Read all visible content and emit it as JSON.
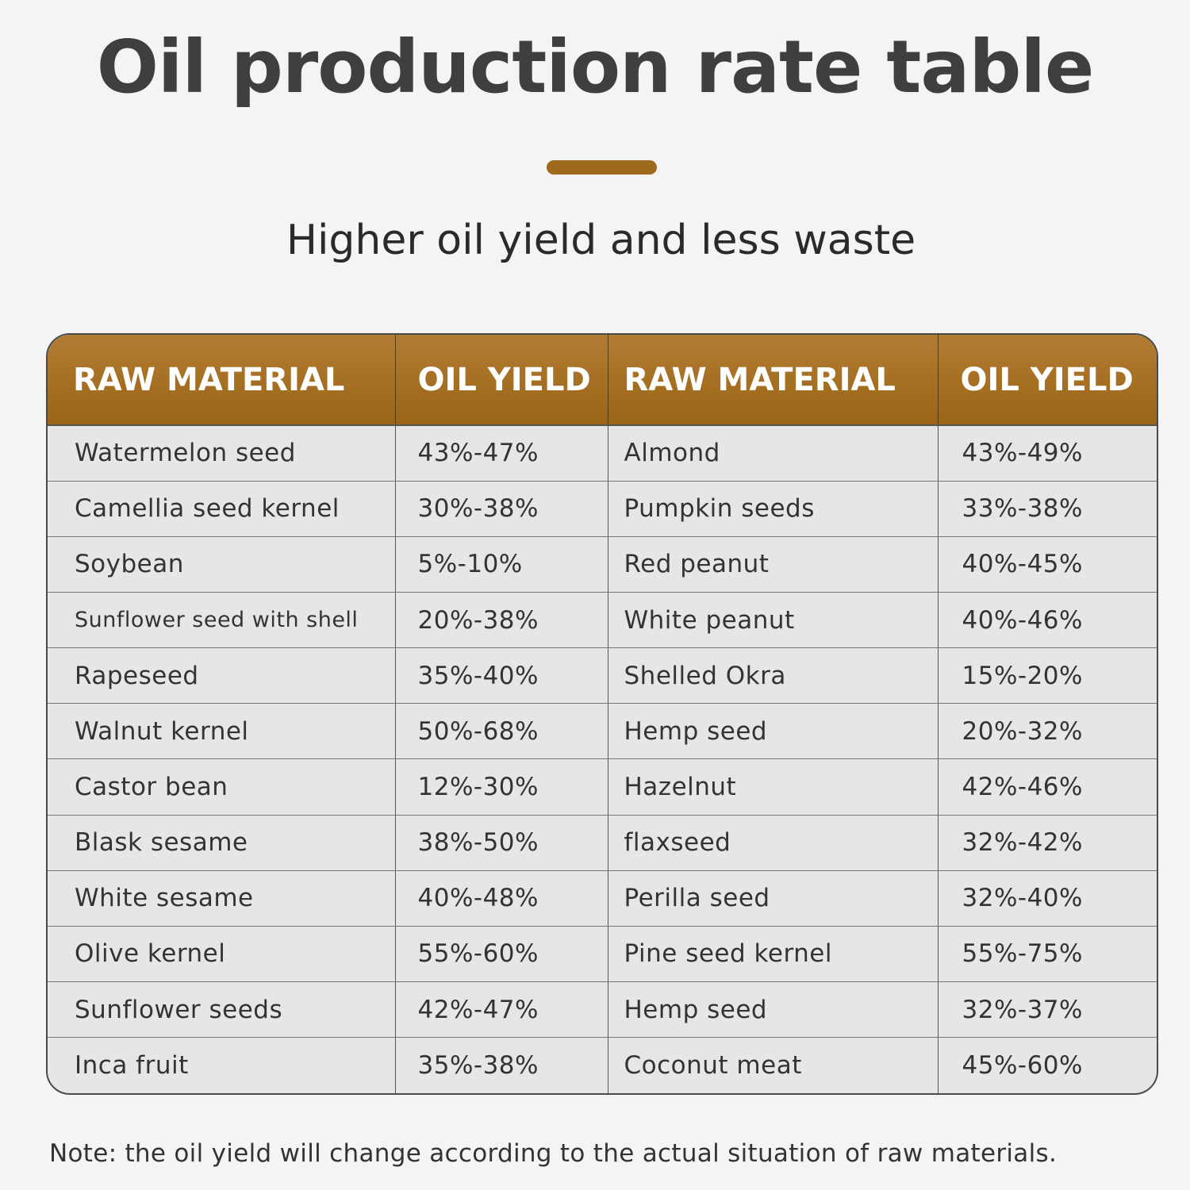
{
  "title": "Oil production rate table",
  "subtitle": "Higher oil yield and less waste",
  "colors": {
    "accent": "#a06a1c",
    "header_bg": "#9a6516",
    "background": "#f4f4f4",
    "row_bg": "#e6e6e6"
  },
  "table": {
    "headers": [
      "RAW MATERIAL",
      "OIL YIELD",
      "RAW MATERIAL",
      "OIL YIELD"
    ],
    "rows": [
      [
        "Watermelon seed",
        "43%-47%",
        "Almond",
        "43%-49%"
      ],
      [
        "Camellia seed kernel",
        "30%-38%",
        "Pumpkin seeds",
        "33%-38%"
      ],
      [
        "Soybean",
        "5%-10%",
        "Red peanut",
        "40%-45%"
      ],
      [
        "Sunflower seed with shell",
        "20%-38%",
        "White peanut",
        "40%-46%"
      ],
      [
        "Rapeseed",
        "35%-40%",
        "Shelled Okra",
        "15%-20%"
      ],
      [
        "Walnut kernel",
        "50%-68%",
        "Hemp seed",
        "20%-32%"
      ],
      [
        "Castor bean",
        "12%-30%",
        "Hazelnut",
        "42%-46%"
      ],
      [
        "Blask sesame",
        "38%-50%",
        "flaxseed",
        "32%-42%"
      ],
      [
        "White sesame",
        "40%-48%",
        "Perilla seed",
        "32%-40%"
      ],
      [
        "Olive kernel",
        "55%-60%",
        "Pine seed kernel",
        "55%-75%"
      ],
      [
        "Sunflower seeds",
        "42%-47%",
        "Hemp seed",
        "32%-37%"
      ],
      [
        "Inca fruit",
        "35%-38%",
        "Coconut meat",
        "45%-60%"
      ]
    ]
  },
  "note": "Note: the oil yield will change according to the actual situation of raw materials."
}
